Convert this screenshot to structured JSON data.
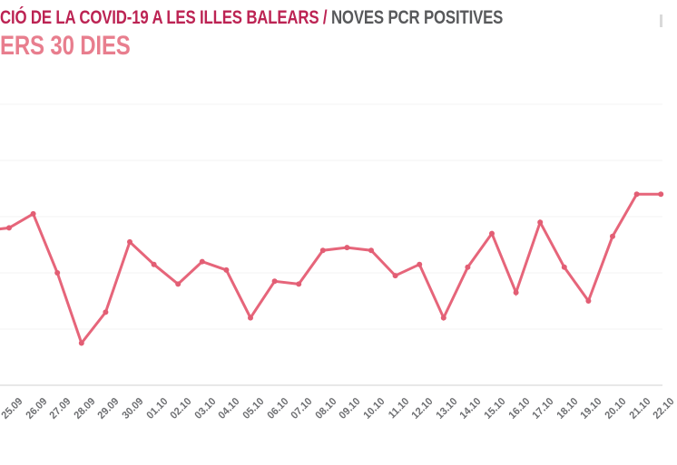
{
  "header": {
    "title_primary": "CIÓ DE LA COVID-19 A LES ILLES BALEARS / ",
    "title_secondary": "NOVES PCR POSITIVES",
    "subtitle": "ERS 30 DIES",
    "colors": {
      "title_primary": "#bc2353",
      "title_secondary": "#58595b",
      "subtitle": "#e87e8e"
    }
  },
  "chart_data": {
    "type": "line",
    "title": "",
    "xlabel": "",
    "ylabel": "",
    "x_labels": [
      "25.09",
      "26.09",
      "27.09",
      "28.09",
      "29.09",
      "30.09",
      "01.10",
      "02.10",
      "03.10",
      "04.10",
      "05.10",
      "06.10",
      "07.10",
      "08.10",
      "09.10",
      "10.10",
      "11.10",
      "12.10",
      "13.10",
      "14.10",
      "15.10",
      "16.10",
      "17.10",
      "18.10",
      "19.10",
      "20.10",
      "21.10",
      "22.10"
    ],
    "values": [
      280,
      305,
      200,
      75,
      130,
      255,
      215,
      180,
      220,
      205,
      120,
      185,
      180,
      240,
      245,
      240,
      195,
      215,
      120,
      210,
      270,
      165,
      290,
      210,
      150,
      265,
      340,
      340
    ],
    "lead_in_value": 275,
    "ylim": [
      0,
      520
    ],
    "y_gridline_values": [
      0,
      100,
      200,
      300,
      400,
      500
    ],
    "y_axis_labels_visible": false,
    "grid": "horizontal",
    "legend": "none",
    "line_color": "#e6657a",
    "marker_color": "#e25e74",
    "gridline_color": "#f3f3f3",
    "axis_line_color": "#e0e0e0",
    "tick_label_color": "#6e6f72"
  }
}
